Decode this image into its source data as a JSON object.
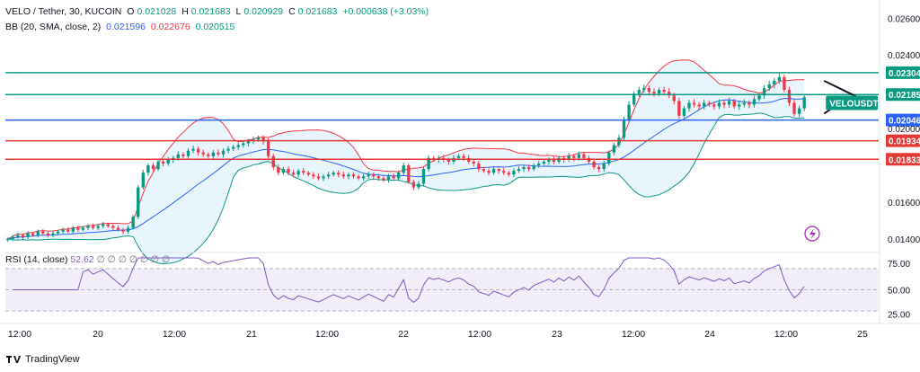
{
  "header": {
    "symbol": "VELO / Tether, 30, KUCOIN",
    "o_label": "O",
    "o_value": "0.021028",
    "h_label": "H",
    "h_value": "0.021683",
    "l_label": "L",
    "l_value": "0.020929",
    "c_label": "C",
    "c_value": "0.021683",
    "change": "+0.000638 (+3.03%)",
    "bb_label": "BB (20, SMA, close, 2)",
    "bb_basis": "0.021596",
    "bb_upper": "0.022676",
    "bb_lower": "0.020515",
    "rsi_label": "RSI (14, close)",
    "rsi_value": "52.62",
    "rsi_placeholders": "∅ ∅ ∅ ∅ ∅ ∅ ∅",
    "brand": "TradingView"
  },
  "colors": {
    "up": "#089981",
    "down": "#f23645",
    "bb_upper": "#f23645",
    "bb_lower": "#089981",
    "bb_basis": "#2962ff",
    "bb_fill": "#e3f2fd",
    "rsi_line": "#7e57c2",
    "rsi_band": "#ede7f6",
    "level_green": "#089981",
    "level_blue": "#2962ff",
    "level_red": "#e53935"
  },
  "chart_data": {
    "type": "candlestick",
    "y_axis_ticks": [
      "0.02600",
      "0.02400",
      "0.02000",
      "0.01600",
      "0.01400"
    ],
    "x_axis_ticks": [
      "12:00",
      "20",
      "12:00",
      "21",
      "12:00",
      "22",
      "12:00",
      "23",
      "12:00",
      "24",
      "12:00",
      "25"
    ],
    "ylim": [
      0.0138,
      0.0266
    ],
    "levels": [
      {
        "label": "0.02304",
        "value": 0.02304,
        "color": "green"
      },
      {
        "label": "0.02185",
        "value": 0.02185,
        "color": "green"
      },
      {
        "label": "0.02046",
        "value": 0.02046,
        "color": "blue"
      },
      {
        "label": "0.01934",
        "value": 0.01934,
        "color": "red"
      },
      {
        "label": "0.01833",
        "value": 0.01833,
        "color": "red"
      }
    ],
    "annotation": "VELOUSDT",
    "close": [
      0.014,
      0.0141,
      0.0142,
      0.0141,
      0.0143,
      0.0142,
      0.0144,
      0.0143,
      0.0142,
      0.0143,
      0.0144,
      0.0145,
      0.0144,
      0.0146,
      0.0145,
      0.0146,
      0.0147,
      0.0146,
      0.0147,
      0.0148,
      0.0147,
      0.0146,
      0.0145,
      0.0144,
      0.0146,
      0.0152,
      0.0168,
      0.0176,
      0.018,
      0.0178,
      0.0182,
      0.0181,
      0.0183,
      0.0184,
      0.0186,
      0.0185,
      0.0188,
      0.0189,
      0.0187,
      0.0186,
      0.0185,
      0.0187,
      0.0186,
      0.0188,
      0.0189,
      0.019,
      0.0191,
      0.0192,
      0.0193,
      0.0194,
      0.0195,
      0.0193,
      0.0185,
      0.0179,
      0.0176,
      0.0178,
      0.0176,
      0.0175,
      0.0177,
      0.0176,
      0.0175,
      0.0174,
      0.0173,
      0.0174,
      0.0175,
      0.0176,
      0.0175,
      0.0174,
      0.0175,
      0.0174,
      0.0173,
      0.0174,
      0.0175,
      0.0174,
      0.0173,
      0.0172,
      0.0174,
      0.0173,
      0.0176,
      0.018,
      0.0171,
      0.0168,
      0.017,
      0.0178,
      0.0184,
      0.0183,
      0.0184,
      0.0183,
      0.0182,
      0.0184,
      0.0185,
      0.0184,
      0.0182,
      0.0181,
      0.0178,
      0.0177,
      0.0176,
      0.0178,
      0.0177,
      0.0176,
      0.0175,
      0.0177,
      0.0178,
      0.0179,
      0.0178,
      0.018,
      0.0181,
      0.0182,
      0.0183,
      0.0182,
      0.0184,
      0.0183,
      0.0185,
      0.0184,
      0.0186,
      0.0184,
      0.0182,
      0.0179,
      0.0178,
      0.0181,
      0.0187,
      0.0191,
      0.0195,
      0.0205,
      0.0213,
      0.0219,
      0.0221,
      0.0222,
      0.022,
      0.0219,
      0.0221,
      0.022,
      0.0218,
      0.0215,
      0.0207,
      0.0211,
      0.0214,
      0.0213,
      0.0212,
      0.0214,
      0.0213,
      0.0212,
      0.0214,
      0.0213,
      0.0215,
      0.0212,
      0.0213,
      0.0214,
      0.0213,
      0.0216,
      0.0218,
      0.0222,
      0.0224,
      0.0226,
      0.0228,
      0.0221,
      0.0214,
      0.0208,
      0.0211,
      0.0217
    ]
  }
}
